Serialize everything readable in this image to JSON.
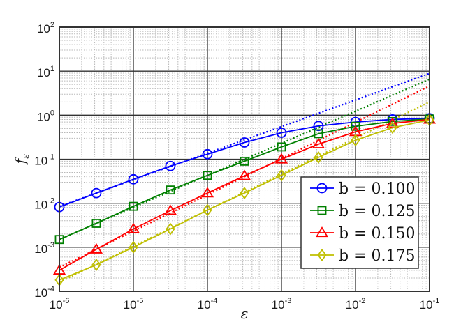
{
  "chart_data": {
    "type": "line",
    "title": "",
    "xlabel": "ε",
    "ylabel": "f_ε",
    "xscale": "log",
    "yscale": "log",
    "xlim": [
      1e-06,
      0.1
    ],
    "ylim": [
      0.0001,
      100.0
    ],
    "grid": "major and minor",
    "legend_position": "lower right",
    "x_tick_labels": [
      "10^-6",
      "10^-5",
      "10^-4",
      "10^-3",
      "10^-2",
      "10^-1"
    ],
    "y_tick_labels": [
      "10^-4",
      "10^-3",
      "10^-2",
      "10^-1",
      "10^0",
      "10^1",
      "10^2"
    ],
    "x": [
      1e-06,
      3.16e-06,
      1e-05,
      3.16e-05,
      0.0001,
      0.000316,
      0.001,
      0.00316,
      0.01,
      0.0316,
      0.1
    ],
    "series": [
      {
        "name": "b = 0.100",
        "color": "#0000ff",
        "marker": "circle",
        "values": [
          0.0082,
          0.017,
          0.035,
          0.07,
          0.13,
          0.24,
          0.4,
          0.57,
          0.7,
          0.8,
          0.85
        ],
        "asymptote": {
          "style": "dotted",
          "x": [
            1e-06,
            0.1
          ],
          "y": [
            0.0085,
            8.9
          ]
        }
      },
      {
        "name": "b = 0.125",
        "color": "#008000",
        "marker": "square",
        "values": [
          0.0015,
          0.0035,
          0.0085,
          0.02,
          0.043,
          0.09,
          0.19,
          0.38,
          0.56,
          0.72,
          0.82
        ],
        "asymptote": {
          "style": "dotted",
          "x": [
            1e-06,
            0.1
          ],
          "y": [
            0.0015,
            6.6
          ]
        }
      },
      {
        "name": "b = 0.150",
        "color": "#ff0000",
        "marker": "triangle",
        "values": [
          0.0003,
          0.0009,
          0.0026,
          0.0068,
          0.017,
          0.042,
          0.1,
          0.22,
          0.42,
          0.65,
          0.8
        ],
        "asymptote": {
          "style": "dotted",
          "x": [
            1e-06,
            0.1
          ],
          "y": [
            0.00035,
            4.6
          ]
        }
      },
      {
        "name": "b = 0.175",
        "color": "#bfbf00",
        "marker": "diamond",
        "values": [
          0.00018,
          0.0004,
          0.001,
          0.0026,
          0.007,
          0.017,
          0.043,
          0.11,
          0.27,
          0.52,
          0.78
        ],
        "asymptote": {
          "style": "dotted",
          "x": [
            1e-06,
            0.1
          ],
          "y": [
            0.00016,
            2.0
          ]
        }
      }
    ]
  },
  "axes": {
    "xlabel": "ε",
    "ylabel_main": "f",
    "ylabel_sub": "ε",
    "x_ticks": [
      {
        "base": "10",
        "exp": "-6"
      },
      {
        "base": "10",
        "exp": "-5"
      },
      {
        "base": "10",
        "exp": "-4"
      },
      {
        "base": "10",
        "exp": "-3"
      },
      {
        "base": "10",
        "exp": "-2"
      },
      {
        "base": "10",
        "exp": "-1"
      }
    ],
    "y_ticks": [
      {
        "base": "10",
        "exp": "-4"
      },
      {
        "base": "10",
        "exp": "-3"
      },
      {
        "base": "10",
        "exp": "-2"
      },
      {
        "base": "10",
        "exp": "-1"
      },
      {
        "base": "10",
        "exp": "0"
      },
      {
        "base": "10",
        "exp": "1"
      },
      {
        "base": "10",
        "exp": "2"
      }
    ]
  },
  "legend": {
    "items": [
      {
        "label": "b = 0.100",
        "color": "#0000ff",
        "marker": "circle"
      },
      {
        "label": "b = 0.125",
        "color": "#008000",
        "marker": "square"
      },
      {
        "label": "b = 0.150",
        "color": "#ff0000",
        "marker": "triangle"
      },
      {
        "label": "b = 0.175",
        "color": "#bfbf00",
        "marker": "diamond"
      }
    ]
  }
}
